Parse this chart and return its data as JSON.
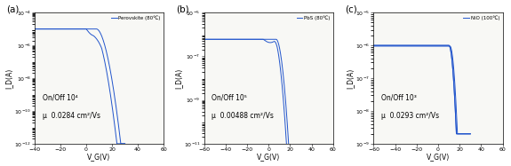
{
  "panels": [
    {
      "label": "(a)",
      "legend": "Perovskite (80℃)",
      "xlabel": "V_G(V)",
      "ylabel": "I_D(A)",
      "xlim": [
        -40,
        60
      ],
      "xticks": [
        -40,
        -20,
        0,
        20,
        40,
        60
      ],
      "ylim_log": [
        -12,
        -4
      ],
      "yticks_log": [
        -12,
        -10,
        -8,
        -6,
        -4
      ],
      "annotation_line1": "On/Off 10⁴",
      "annotation_line2": "μ  0.0284 cm²/Vs",
      "curve_type": "perovskite",
      "line_color": "#2255cc",
      "bg_color": "#f8f8f5"
    },
    {
      "label": "(b)",
      "legend": "PbS (80℃)",
      "xlabel": "V_G(V)",
      "ylabel": "I_D(A)",
      "xlim": [
        -60,
        60
      ],
      "xticks": [
        -60,
        -40,
        -20,
        0,
        20,
        40,
        60
      ],
      "ylim_log": [
        -11,
        -5
      ],
      "yticks_log": [
        -11,
        -9,
        -7,
        -5
      ],
      "annotation_line1": "On/Off 10⁵",
      "annotation_line2": "μ  0.00488 cm²/Vs",
      "curve_type": "pbs",
      "line_color": "#2255cc",
      "bg_color": "#f8f8f5"
    },
    {
      "label": "(c)",
      "legend": "NiO (100℃)",
      "xlabel": "V_G(V)",
      "ylabel": "I_D(A)",
      "xlim": [
        -60,
        60
      ],
      "xticks": [
        -60,
        -40,
        -20,
        0,
        20,
        40,
        60
      ],
      "ylim_log": [
        -9,
        -5
      ],
      "yticks_log": [
        -9,
        -8,
        -7,
        -6,
        -5
      ],
      "annotation_line1": "On/Off 10³",
      "annotation_line2": "μ  0.0293 cm²/Vs",
      "curve_type": "nio",
      "line_color": "#2255cc",
      "bg_color": "#f8f8f5"
    }
  ],
  "figure_bg": "#ffffff"
}
